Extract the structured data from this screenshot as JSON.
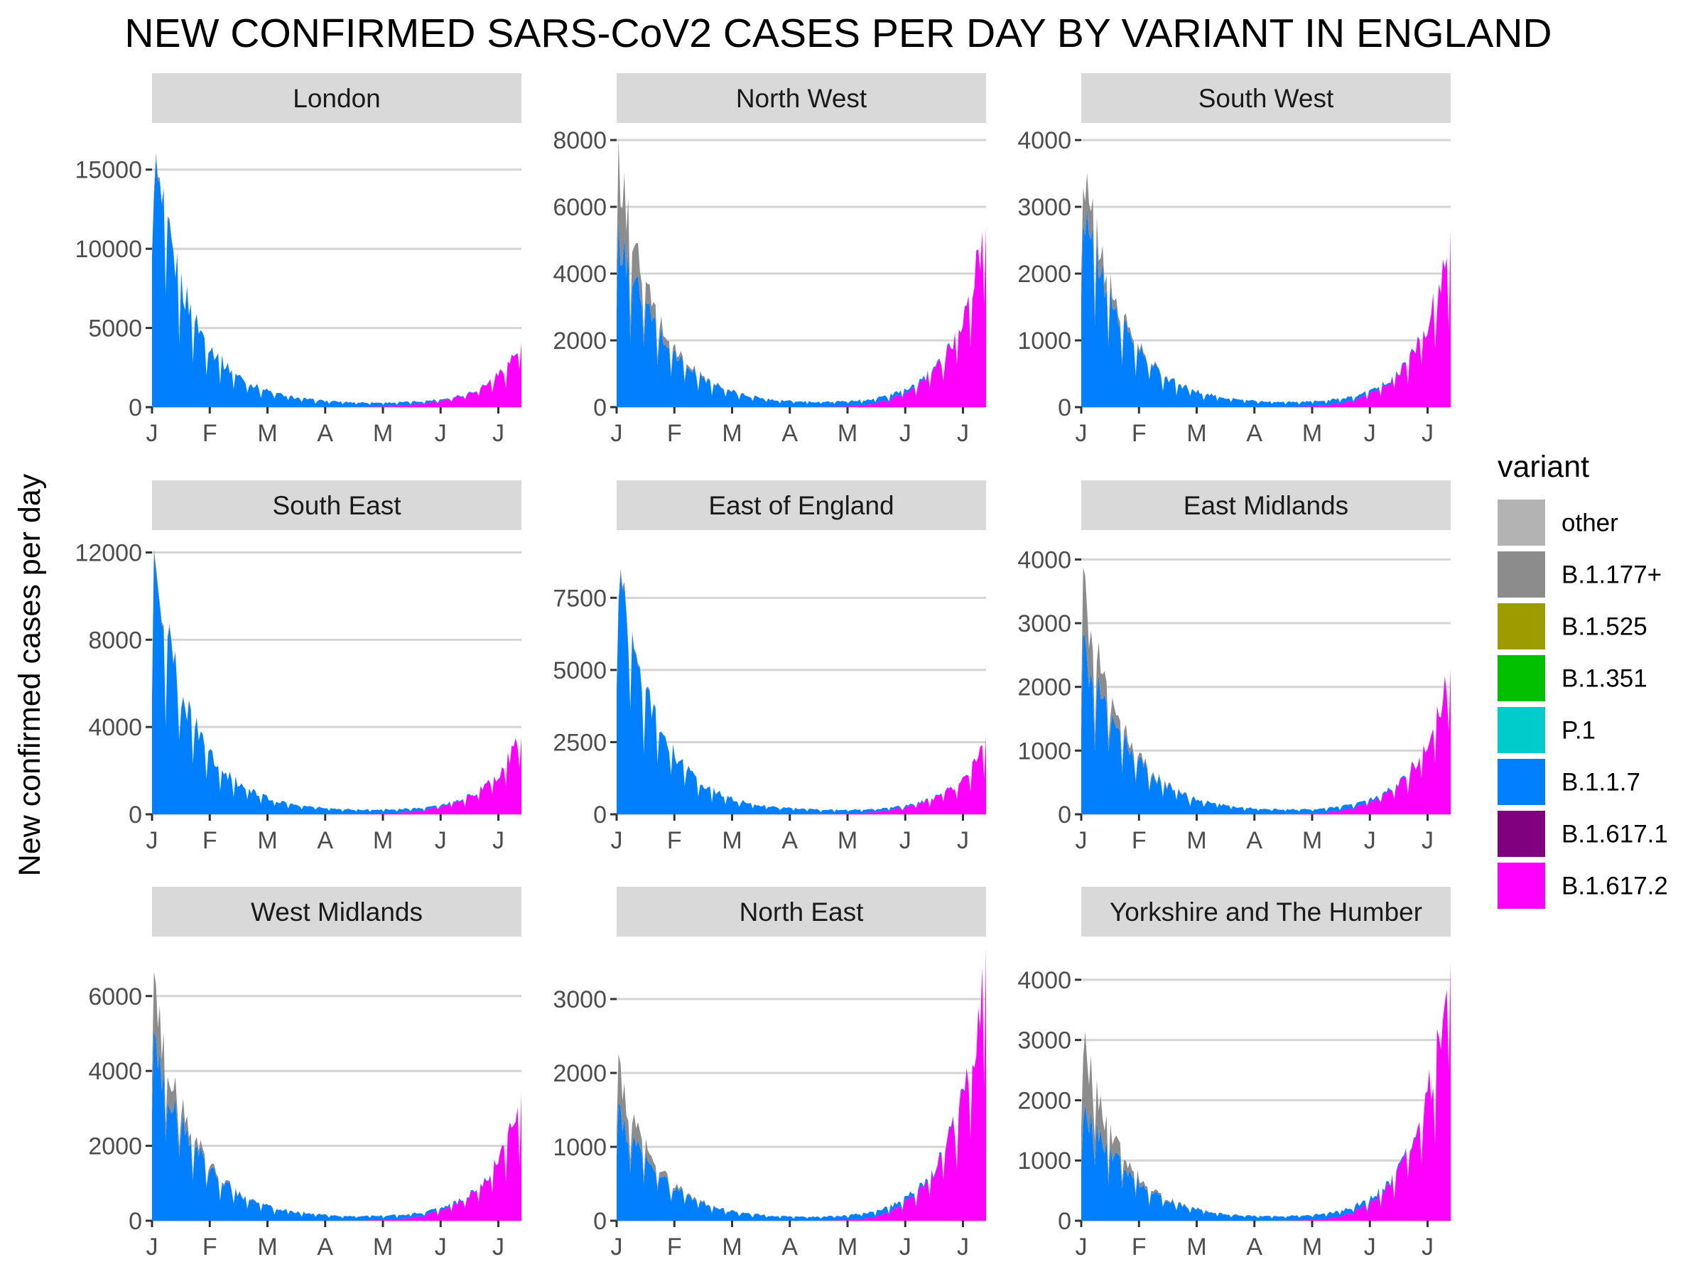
{
  "chart_data": {
    "type": "area",
    "title": "NEW CONFIRMED SARS-CoV2 CASES PER DAY BY VARIANT IN ENGLAND",
    "ylabel": "New confirmed cases per day",
    "xlabel": "",
    "x_tick_labels": [
      "J",
      "F",
      "M",
      "A",
      "M",
      "J",
      "J"
    ],
    "x_tick_months": [
      0,
      1,
      2,
      3,
      4,
      5,
      6
    ],
    "x_range_months": [
      0,
      6.4
    ],
    "grid": true,
    "legend": {
      "title": "variant",
      "placement": "right",
      "items": [
        {
          "name": "other",
          "color": "#b3b3b3"
        },
        {
          "name": "B.1.177+",
          "color": "#8c8c8c"
        },
        {
          "name": "B.1.525",
          "color": "#9c9c00"
        },
        {
          "name": "B.1.351",
          "color": "#00c000"
        },
        {
          "name": "P.1",
          "color": "#00cccc"
        },
        {
          "name": "B.1.1.7",
          "color": "#0080ff"
        },
        {
          "name": "B.1.617.1",
          "color": "#800080"
        },
        {
          "name": "B.1.617.2",
          "color": "#ff00ff"
        }
      ]
    },
    "panels": [
      {
        "region": "London",
        "ylim": [
          0,
          17500
        ],
        "yticks": [
          0,
          5000,
          10000,
          15000
        ],
        "peak": 16500,
        "other_frac": 0.02,
        "end_value": 4000
      },
      {
        "region": "North West",
        "ylim": [
          0,
          8300
        ],
        "yticks": [
          0,
          2000,
          4000,
          6000,
          8000
        ],
        "peak": 7600,
        "other_frac": 0.32,
        "end_value": 5600
      },
      {
        "region": "South West",
        "ylim": [
          0,
          4150
        ],
        "yticks": [
          0,
          1000,
          2000,
          3000,
          4000
        ],
        "peak": 3800,
        "other_frac": 0.18,
        "end_value": 2600
      },
      {
        "region": "South East",
        "ylim": [
          0,
          12700
        ],
        "yticks": [
          0,
          4000,
          8000,
          12000
        ],
        "peak": 12000,
        "other_frac": 0.02,
        "end_value": 3700
      },
      {
        "region": "East of England",
        "ylim": [
          0,
          9600
        ],
        "yticks": [
          0,
          2500,
          5000,
          7500
        ],
        "peak": 8800,
        "other_frac": 0.02,
        "end_value": 2500
      },
      {
        "region": "East Midlands",
        "ylim": [
          0,
          4350
        ],
        "yticks": [
          0,
          1000,
          2000,
          3000,
          4000
        ],
        "peak": 3800,
        "other_frac": 0.28,
        "end_value": 2400
      },
      {
        "region": "West Midlands",
        "ylim": [
          0,
          7400
        ],
        "yticks": [
          0,
          2000,
          4000,
          6000
        ],
        "peak": 6400,
        "other_frac": 0.25,
        "end_value": 3300
      },
      {
        "region": "North East",
        "ylim": [
          0,
          3750
        ],
        "yticks": [
          0,
          1000,
          2000,
          3000
        ],
        "peak": 2100,
        "other_frac": 0.3,
        "end_value": 3600
      },
      {
        "region": "Yorkshire and The Humber",
        "ylim": [
          0,
          4600
        ],
        "yticks": [
          0,
          1000,
          2000,
          3000,
          4000
        ],
        "peak": 3100,
        "other_frac": 0.42,
        "end_value": 4400
      }
    ]
  }
}
